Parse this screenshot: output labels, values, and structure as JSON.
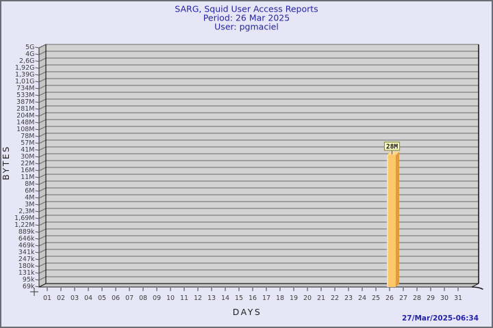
{
  "window": {
    "background": "#e6e6f6",
    "border_color": "#6b6b76"
  },
  "header": {
    "title": "SARG, Squid User Access Reports",
    "period": "Period: 26 Mar 2025",
    "user": "User: pgmaciel"
  },
  "footer": {
    "generated": "27/Mar/2025-06:34"
  },
  "chart_data": {
    "type": "bar",
    "title": "SARG, Squid User Access Reports",
    "subtitle": "Period: 26 Mar 2025 / User: pgmaciel",
    "xlabel": "DAYS",
    "ylabel": "BYTES",
    "y_scale": "log",
    "grid": true,
    "style": "3d-bar",
    "y_tick_labels": [
      "5G",
      "4G",
      "2,6G",
      "1,92G",
      "1,39G",
      "1,01G",
      "734M",
      "533M",
      "387M",
      "281M",
      "204M",
      "148M",
      "108M",
      "78M",
      "57M",
      "41M",
      "30M",
      "22M",
      "16M",
      "11M",
      "8M",
      "6M",
      "4M",
      "3M",
      "2,3M",
      "1,69M",
      "1,22M",
      "889k",
      "646k",
      "469k",
      "341k",
      "247k",
      "180k",
      "131k",
      "95k",
      "69k"
    ],
    "x_tick_labels": [
      "01",
      "02",
      "03",
      "04",
      "05",
      "06",
      "07",
      "08",
      "09",
      "10",
      "11",
      "12",
      "13",
      "14",
      "15",
      "16",
      "17",
      "18",
      "19",
      "20",
      "21",
      "22",
      "23",
      "24",
      "25",
      "26",
      "27",
      "28",
      "29",
      "30",
      "31"
    ],
    "bars": [
      {
        "day": "26",
        "label": "28M",
        "bytes": 28000000
      }
    ],
    "colors": {
      "plot_bg": "#d3d3d3",
      "wall": "#c6c6c6",
      "grid_line": "#6a6a6a",
      "plot_border": "#1a1a1a",
      "bar_face": "#fdc768",
      "bar_highlight": "#ffdf9e",
      "bar_side": "#e09a40",
      "bar_top": "#fcd68b",
      "annotation_bg": "#ffffc9",
      "annotation_border": "#8f8f33"
    }
  }
}
